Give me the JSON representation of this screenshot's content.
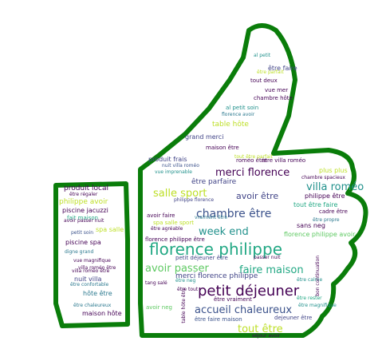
{
  "colors": {
    "outline": "#0a7d0a",
    "palette": [
      "#440154",
      "#3b528b",
      "#21918c",
      "#5ec962",
      "#bddf26",
      "#2a788e",
      "#22a884",
      "#414487"
    ]
  },
  "words": [
    {
      "text": "florence philippe",
      "c": 6
    },
    {
      "text": "petit déjeuner",
      "c": 0
    },
    {
      "text": "chambre être",
      "c": 1
    },
    {
      "text": "villa roméo",
      "c": 2
    },
    {
      "text": "merci florence",
      "c": 0
    },
    {
      "text": "accueil chaleureux",
      "c": 1
    },
    {
      "text": "salle sport",
      "c": 4
    },
    {
      "text": "faire maison",
      "c": 6
    },
    {
      "text": "avoir passer",
      "c": 3
    },
    {
      "text": "tout être",
      "c": 4
    },
    {
      "text": "week end",
      "c": 2
    },
    {
      "text": "avoir être",
      "c": 7
    },
    {
      "text": "produit local",
      "c": 0
    },
    {
      "text": "piscine jacuzzi",
      "c": 0
    },
    {
      "text": "philippe avoir",
      "c": 4
    },
    {
      "text": "piscine spa",
      "c": 0
    },
    {
      "text": "nuit villa",
      "c": 7
    },
    {
      "text": "hôte être",
      "c": 5
    },
    {
      "text": "maison hôte",
      "c": 0
    },
    {
      "text": "spa salle",
      "c": 4
    },
    {
      "text": "fait maison",
      "c": 6
    },
    {
      "text": "être faire",
      "c": 7
    },
    {
      "text": "tout deux",
      "c": 0
    },
    {
      "text": "vue mer",
      "c": 0
    },
    {
      "text": "chambre hôte",
      "c": 0
    },
    {
      "text": "table hôte",
      "c": 4
    },
    {
      "text": "grand merci",
      "c": 7
    },
    {
      "text": "maison être",
      "c": 0
    },
    {
      "text": "produit frais",
      "c": 7
    },
    {
      "text": "être parfaire",
      "c": 7
    },
    {
      "text": "philippe être",
      "c": 0
    },
    {
      "text": "merci florence philippe",
      "c": 7
    },
    {
      "text": "sans neg",
      "c": 0
    },
    {
      "text": "tout être faire",
      "c": 6
    },
    {
      "text": "florence philippe avoir",
      "c": 3
    },
    {
      "text": "être vraiment",
      "c": 0
    },
    {
      "text": "dejeuner être",
      "c": 7
    },
    {
      "text": "être faire maison",
      "c": 1
    },
    {
      "text": "plus plus",
      "c": 4
    },
    {
      "text": "cadre être",
      "c": 0
    },
    {
      "text": "roméo être",
      "c": 0
    },
    {
      "text": "être villa roméo",
      "c": 0
    },
    {
      "text": "al petit soin",
      "c": 2
    },
    {
      "text": "florence avoir",
      "c": 5
    },
    {
      "text": "philippe florence",
      "c": 7
    },
    {
      "text": "nuit villa roméo",
      "c": 1
    },
    {
      "text": "spa salle sport",
      "c": 4
    },
    {
      "text": "être agréable",
      "c": 0
    },
    {
      "text": "florence philippe être",
      "c": 0
    },
    {
      "text": "petit déjeuner être",
      "c": 7
    },
    {
      "text": "passer nuit",
      "c": 0
    },
    {
      "text": "être neg",
      "c": 2
    },
    {
      "text": "avoir faire",
      "c": 0
    },
    {
      "text": "avoir neg",
      "c": 3
    },
    {
      "text": "être tout",
      "c": 0
    },
    {
      "text": "être calme",
      "c": 2
    },
    {
      "text": "être rester",
      "c": 6
    },
    {
      "text": "être magnifique",
      "c": 2
    },
    {
      "text": "séjour avoir",
      "c": 0
    },
    {
      "text": "villa roméo être",
      "c": 0
    },
    {
      "text": "être propre",
      "c": 5
    },
    {
      "text": "tout être parfait",
      "c": 4
    },
    {
      "text": "vraiment être",
      "c": 5
    },
    {
      "text": "être régaler",
      "c": 0
    },
    {
      "text": "petit soin",
      "c": 1
    },
    {
      "text": "digne grand",
      "c": 5
    },
    {
      "text": "vue magnifique",
      "c": 0
    },
    {
      "text": "villa roméo être",
      "c": 0
    },
    {
      "text": "être confortable",
      "c": 5
    },
    {
      "text": "être chaleureux",
      "c": 5
    },
    {
      "text": "avoir passer nuit",
      "c": 0
    },
    {
      "text": "al petit",
      "c": 2
    },
    {
      "text": "être parfait",
      "c": 4
    },
    {
      "text": "chambre spacieux",
      "c": 0
    },
    {
      "text": "vue imprenable",
      "c": 2
    },
    {
      "text": "tang salé",
      "c": 0
    },
    {
      "text": "bon continuation",
      "c": 0
    },
    {
      "text": "table hôte être",
      "c": 0
    }
  ]
}
